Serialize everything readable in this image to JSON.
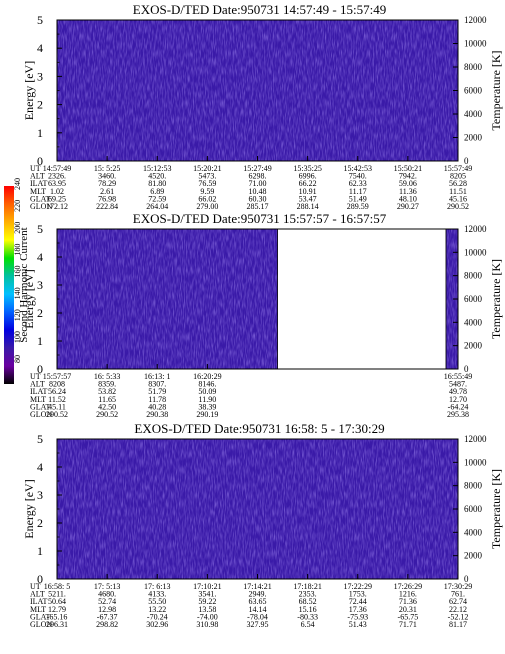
{
  "colors": {
    "background": "#ffffff",
    "spectrogram_fill": "#3a1aa8",
    "noise_dark": "#2a0f84",
    "noise_light": "#5a40d8",
    "axis": "#000000"
  },
  "colorbar": {
    "label": "Second Harmonic Current",
    "ticks": [
      "240",
      "220",
      "200",
      "180",
      "160",
      "140",
      "120",
      "100",
      "80"
    ],
    "stops": [
      "#ff0000",
      "#ff6000",
      "#ffb000",
      "#ffff00",
      "#00e000",
      "#00c0a0",
      "#00c0ff",
      "#0060ff",
      "#0000e0",
      "#3a1aa8",
      "#6a00a0",
      "#000000"
    ]
  },
  "chart_data": [
    {
      "type": "heatmap",
      "title": "EXOS-D/TED   Date:950731   14:57:49 - 15:57:49",
      "ylabel": "Energy [eV]",
      "y2label": "Temperature [K]",
      "ylim": [
        0,
        5
      ],
      "y2lim": [
        0,
        12000
      ],
      "yticks": [
        "0",
        "1",
        "2",
        "3",
        "4",
        "5"
      ],
      "y2ticks": [
        "0",
        "2000",
        "4000",
        "6000",
        "8000",
        "10000",
        "12000"
      ],
      "data_coverage": [
        0,
        1
      ],
      "ephemeris": {
        "labels": [
          "UT",
          "ALT",
          "ILAT",
          "MLT",
          "GLAT",
          "GLON"
        ],
        "columns": [
          [
            "14:57:49",
            "2326.",
            "63.95",
            "1.02",
            "69.25",
            "172.12"
          ],
          [
            "15: 5:25",
            "3460.",
            "78.29",
            "2.61",
            "76.98",
            "222.84"
          ],
          [
            "15:12:53",
            "4520.",
            "81.80",
            "6.89",
            "72.59",
            "264.04"
          ],
          [
            "15:20:21",
            "5473.",
            "76.59",
            "9.59",
            "66.02",
            "279.00"
          ],
          [
            "15:27:49",
            "6298.",
            "71.00",
            "10.48",
            "60.30",
            "285.17"
          ],
          [
            "15:35:25",
            "6996.",
            "66.22",
            "10.91",
            "53.47",
            "288.14"
          ],
          [
            "15:42:53",
            "7540.",
            "62.33",
            "11.17",
            "51.49",
            "289.59"
          ],
          [
            "15:50:21",
            "7942.",
            "59.06",
            "11.36",
            "48.10",
            "290.27"
          ],
          [
            "15:57:49",
            "8205",
            "56.28",
            "11.51",
            "45.16",
            "290.52"
          ]
        ]
      }
    },
    {
      "type": "heatmap",
      "title": "EXOS-D/TED   Date:950731   15:57:57 - 16:57:57",
      "ylabel": "Energy [eV]",
      "y2label": "Temperature [K]",
      "ylim": [
        0,
        5
      ],
      "y2lim": [
        0,
        12000
      ],
      "yticks": [
        "0",
        "1",
        "2",
        "3",
        "4",
        "5"
      ],
      "y2ticks": [
        "0",
        "2000",
        "4000",
        "6000",
        "8000",
        "10000",
        "12000"
      ],
      "data_coverage": [
        0,
        0.55
      ],
      "data_coverage_2": [
        0.97,
        1
      ],
      "ephemeris": {
        "labels": [
          "UT",
          "ALT",
          "ILAT",
          "MLT",
          "GLAT",
          "GLON"
        ],
        "columns": [
          [
            "15:57:57",
            "8208",
            "56.24",
            "11.52",
            "45.11",
            "290.52"
          ],
          [
            "16: 5:33",
            "8359.",
            "53.82",
            "11.65",
            "42.50",
            "290.52"
          ],
          [
            "16:13: 1",
            "8307.",
            "51.79",
            "11.78",
            "40.28",
            "290.38"
          ],
          [
            "16:20:29",
            "8146.",
            "50.09",
            "11.90",
            "38.39",
            "290.19"
          ]
        ],
        "last_column": [
          "16:55:49",
          "5487.",
          "49.78",
          "12.70",
          "-64.24",
          "295.38"
        ]
      }
    },
    {
      "type": "heatmap",
      "title": "EXOS-D/TED   Date:950731   16:58: 5 - 17:30:29",
      "ylabel": "Energy [eV]",
      "y2label": "Temperature [K]",
      "ylim": [
        0,
        5
      ],
      "y2lim": [
        0,
        12000
      ],
      "yticks": [
        "0",
        "1",
        "2",
        "3",
        "4",
        "5"
      ],
      "y2ticks": [
        "0",
        "2000",
        "4000",
        "6000",
        "8000",
        "10000",
        "12000"
      ],
      "data_coverage": [
        0,
        1
      ],
      "ephemeris": {
        "labels": [
          "UT",
          "ALT",
          "ILAT",
          "MLT",
          "GLAT",
          "GLON"
        ],
        "columns": [
          [
            "16:58: 5",
            "5211.",
            "50.64",
            "12.79",
            "-65.16",
            "296.31"
          ],
          [
            "17: 5:13",
            "4680.",
            "52.74",
            "12.98",
            "-67.37",
            "298.82"
          ],
          [
            "17: 6:13",
            "4133.",
            "55.50",
            "13.22",
            "-70.24",
            "302.96"
          ],
          [
            "17:10:21",
            "3541.",
            "59.22",
            "13.58",
            "-74.00",
            "310.98"
          ],
          [
            "17:14:21",
            "2949.",
            "63.65",
            "14.14",
            "-78.04",
            "327.95"
          ],
          [
            "17:18:21",
            "2353.",
            "68.52",
            "15.16",
            "-80.33",
            "6.54"
          ],
          [
            "17:22:29",
            "1753.",
            "72.44",
            "17.36",
            "-75.93",
            "51.43"
          ],
          [
            "17:26:29",
            "1216.",
            "71.36",
            "20.31",
            "-65.75",
            "71.71"
          ],
          [
            "17:30:29",
            "761.",
            "62.74",
            "22.12",
            "-52.12",
            "81.17"
          ]
        ]
      }
    }
  ]
}
